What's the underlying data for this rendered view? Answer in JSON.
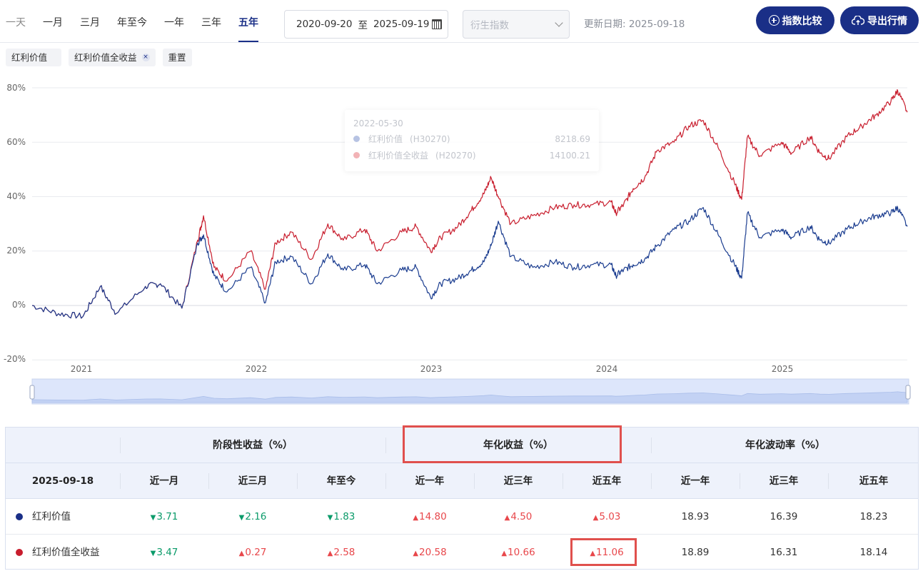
{
  "period_tabs": [
    {
      "label": "一天",
      "active": false
    },
    {
      "label": "一月",
      "active": false
    },
    {
      "label": "三月",
      "active": false
    },
    {
      "label": "年至今",
      "active": false
    },
    {
      "label": "一年",
      "active": false
    },
    {
      "label": "三年",
      "active": false
    },
    {
      "label": "五年",
      "active": true
    }
  ],
  "date_range": {
    "start": "2020-09-20",
    "separator": "至",
    "end": "2025-09-19"
  },
  "derive_select": {
    "placeholder": "衍生指数"
  },
  "update_date": "更新日期: 2025-09-18",
  "buttons": {
    "compare": "指数比较",
    "export": "导出行情"
  },
  "chips": [
    {
      "label": "红利价值",
      "closable": false
    },
    {
      "label": "红利价值全收益",
      "closable": true
    },
    {
      "label": "重置",
      "closable": false
    }
  ],
  "chip_close_symbol": "×",
  "tooltip": {
    "date": "2022-05-30",
    "rows": [
      {
        "name": "红利价值",
        "code": "(H30270)",
        "value": "8218.69",
        "color": "#b7c3e3"
      },
      {
        "name": "红利价值全收益",
        "code": "(H20270)",
        "value": "14100.21",
        "color": "#f2b3b6"
      }
    ]
  },
  "chart_data": {
    "type": "line",
    "x_ticks": [
      "2021",
      "2022",
      "2023",
      "2024",
      "2025"
    ],
    "y_ticks": [
      "80%",
      "60%",
      "40%",
      "20%",
      "0%",
      "-20%"
    ],
    "ylim": [
      -20,
      80
    ],
    "xlim": [
      "2020-09-21",
      "2025-09-18"
    ],
    "grid": true,
    "x": [
      "2020-09-21",
      "2020-11-15",
      "2021-01-05",
      "2021-02-10",
      "2021-03-15",
      "2021-05-15",
      "2021-06-15",
      "2021-07-30",
      "2021-09-01",
      "2021-09-13",
      "2021-10-05",
      "2021-11-01",
      "2021-12-20",
      "2022-01-20",
      "2022-02-10",
      "2022-03-15",
      "2022-04-26",
      "2022-05-30",
      "2022-07-01",
      "2022-08-15",
      "2022-09-10",
      "2022-10-31",
      "2022-11-30",
      "2022-12-30",
      "2023-01-20",
      "2023-02-25",
      "2023-03-25",
      "2023-04-20",
      "2023-05-05",
      "2023-05-20",
      "2023-06-15",
      "2023-07-31",
      "2023-09-15",
      "2023-10-25",
      "2023-12-01",
      "2024-01-10",
      "2024-01-20",
      "2024-02-05",
      "2024-02-25",
      "2024-03-20",
      "2024-04-15",
      "2024-05-20",
      "2024-06-20",
      "2024-07-20",
      "2024-08-20",
      "2024-09-23",
      "2024-10-08",
      "2024-10-20",
      "2024-11-15",
      "2024-12-30",
      "2025-01-20",
      "2025-02-28",
      "2025-03-20",
      "2025-04-08",
      "2025-05-15",
      "2025-06-15",
      "2025-07-15",
      "2025-08-15",
      "2025-08-29",
      "2025-09-18"
    ],
    "series": [
      {
        "name": "红利价值",
        "code": "H30270",
        "color": "#1a3c8f",
        "values": [
          0,
          -3,
          -4,
          7,
          -3,
          7,
          8,
          -1,
          23,
          26,
          11,
          5,
          14,
          1,
          16,
          18,
          8,
          19,
          13,
          15,
          8,
          13,
          14,
          3,
          8,
          10,
          13,
          16,
          22,
          31,
          18,
          14,
          16,
          14,
          15,
          15,
          11,
          13,
          15,
          17,
          22,
          28,
          31,
          36,
          26,
          15,
          10,
          34,
          25,
          28,
          25,
          29,
          24,
          23,
          28,
          31,
          33,
          34,
          36,
          29
        ]
      },
      {
        "name": "红利价值全收益",
        "code": "H20270",
        "color": "#c81d2d",
        "values": [
          0,
          -3,
          -4,
          7,
          -3,
          7,
          8,
          -1,
          24,
          33,
          14,
          9,
          20,
          6,
          23,
          27,
          17,
          30,
          24,
          28,
          20,
          27,
          29,
          20,
          25,
          29,
          35,
          41,
          47,
          40,
          30,
          33,
          36,
          37,
          37,
          38,
          34,
          37,
          43,
          47,
          57,
          60,
          66,
          68,
          58,
          45,
          39,
          62,
          55,
          60,
          56,
          62,
          56,
          54,
          62,
          66,
          70,
          75,
          79,
          71
        ]
      }
    ]
  },
  "table": {
    "groups": [
      "阶段性收益（%）",
      "年化收益（%）",
      "年化波动率（%）"
    ],
    "date": "2025-09-18",
    "columns": [
      "近一月",
      "近三月",
      "年至今",
      "近一年",
      "近三年",
      "近五年",
      "近一年",
      "近三年",
      "近五年"
    ],
    "rows": [
      {
        "name": "红利价值",
        "color": "#1a2f87",
        "cells": [
          {
            "text": "3.71",
            "dir": "down"
          },
          {
            "text": "2.16",
            "dir": "down"
          },
          {
            "text": "1.83",
            "dir": "down"
          },
          {
            "text": "14.80",
            "dir": "up"
          },
          {
            "text": "4.50",
            "dir": "up"
          },
          {
            "text": "5.03",
            "dir": "up"
          },
          {
            "text": "18.93",
            "dir": "none"
          },
          {
            "text": "16.39",
            "dir": "none"
          },
          {
            "text": "18.23",
            "dir": "none"
          }
        ]
      },
      {
        "name": "红利价值全收益",
        "color": "#c81d2d",
        "cells": [
          {
            "text": "3.47",
            "dir": "down"
          },
          {
            "text": "0.27",
            "dir": "up"
          },
          {
            "text": "2.58",
            "dir": "up"
          },
          {
            "text": "20.58",
            "dir": "up"
          },
          {
            "text": "10.66",
            "dir": "up"
          },
          {
            "text": "11.06",
            "dir": "up"
          },
          {
            "text": "18.89",
            "dir": "none"
          },
          {
            "text": "16.31",
            "dir": "none"
          },
          {
            "text": "18.14",
            "dir": "none"
          }
        ]
      }
    ]
  },
  "arrows": {
    "up": "▲",
    "down": "▼"
  },
  "highlight_color": "#e0504d"
}
